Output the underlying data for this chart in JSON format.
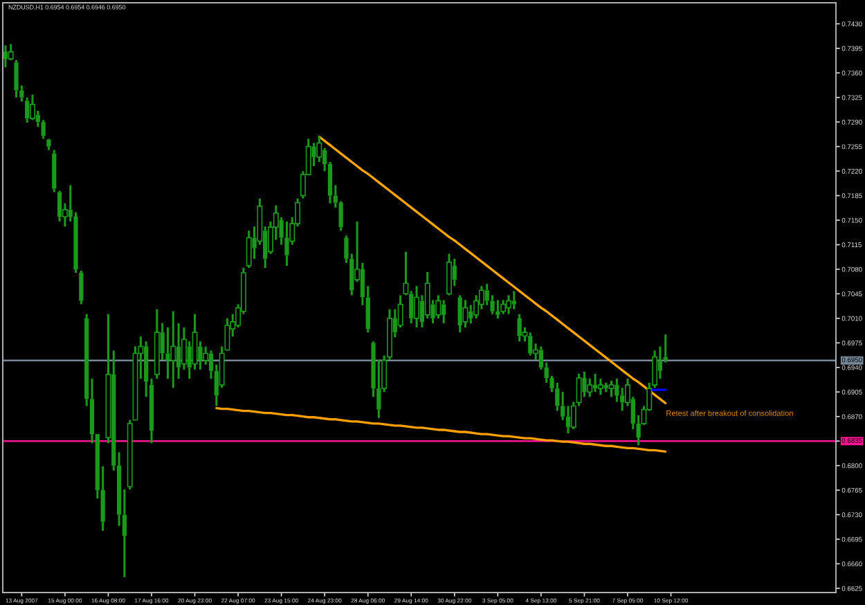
{
  "chart_data": {
    "type": "candlestick",
    "title": "NZDUSD,H1 0.6954 0.6954 0.6946 0.6950",
    "color": "#1a9a1a",
    "categories": [
      null,
      null,
      null,
      "13 Aug 2007",
      null,
      null,
      null,
      null,
      null,
      null,
      null,
      "15 Aug 00:00",
      null,
      null,
      null,
      null,
      null,
      null,
      null,
      "16 Aug 08:00",
      null,
      null,
      null,
      null,
      null,
      null,
      null,
      "17 Aug 16:00",
      null,
      null,
      null,
      null,
      null,
      null,
      null,
      "20 Aug 23:00",
      null,
      null,
      null,
      null,
      null,
      null,
      null,
      "22 Aug 07:00",
      null,
      null,
      null,
      null,
      null,
      null,
      null,
      "23 Aug 15:00",
      null,
      null,
      null,
      null,
      null,
      null,
      null,
      "24 Aug 23:00",
      null,
      null,
      null,
      null,
      null,
      null,
      null,
      "28 Aug 06:00",
      null,
      null,
      null,
      null,
      null,
      null,
      null,
      "29 Aug 14:00",
      null,
      null,
      null,
      null,
      null,
      null,
      null,
      "30 Aug 22:00",
      null,
      null,
      null,
      null,
      null,
      null,
      null,
      "3 Sep 05:00",
      null,
      null,
      null,
      null,
      null,
      null,
      null,
      "4 Sep 13:00",
      null,
      null,
      null,
      null,
      null,
      null,
      null,
      "5 Sep 21:00",
      null,
      null,
      null,
      null,
      null,
      null,
      null,
      "7 Sep 05:00",
      null,
      null,
      null,
      null,
      null,
      null,
      null,
      "10 Sep 12:00",
      null,
      null,
      null,
      null,
      null,
      null,
      null,
      null,
      null,
      null,
      null,
      null,
      null,
      null,
      null,
      null,
      null,
      null,
      null,
      null,
      null,
      null,
      null,
      null,
      null,
      null,
      null,
      null,
      null,
      null
    ],
    "ohlc": [
      [
        0.739,
        0.7399,
        0.7368,
        0.738
      ],
      [
        0.738,
        0.7401,
        0.7378,
        0.739
      ],
      [
        0.7375,
        0.7378,
        0.7325,
        0.7335
      ],
      [
        0.7335,
        0.7342,
        0.7319,
        0.7325
      ],
      [
        0.732,
        0.7325,
        0.7289,
        0.7295
      ],
      [
        0.7295,
        0.7329,
        0.7293,
        0.7315
      ],
      [
        0.73,
        0.7306,
        0.7283,
        0.729
      ],
      [
        0.729,
        0.7293,
        0.7266,
        0.727
      ],
      [
        0.7265,
        0.7266,
        0.725,
        0.7255
      ],
      [
        0.7245,
        0.725,
        0.719,
        0.7195
      ],
      [
        0.719,
        0.7192,
        0.7148,
        0.7155
      ],
      [
        0.7155,
        0.7174,
        0.7141,
        0.7165
      ],
      [
        0.7165,
        0.72,
        0.7148,
        0.7155
      ],
      [
        0.7155,
        0.7161,
        0.7075,
        0.708
      ],
      [
        0.7075,
        0.7078,
        0.703,
        0.7035
      ],
      [
        0.701,
        0.7016,
        0.6885,
        0.6895
      ],
      [
        0.6895,
        0.6924,
        0.6832,
        0.6845
      ],
      [
        0.6845,
        0.6845,
        0.6753,
        0.6765
      ],
      [
        0.6765,
        0.6799,
        0.6707,
        0.672
      ],
      [
        0.684,
        0.7016,
        0.6832,
        0.693
      ],
      [
        0.693,
        0.6964,
        0.6793,
        0.68
      ],
      [
        0.68,
        0.6819,
        0.6714,
        0.673
      ],
      [
        0.673,
        0.6766,
        0.6641,
        0.67
      ],
      [
        0.677,
        0.6865,
        0.6766,
        0.686
      ],
      [
        0.6865,
        0.697,
        0.6865,
        0.696
      ],
      [
        0.696,
        0.6984,
        0.6924,
        0.697
      ],
      [
        0.697,
        0.6977,
        0.6898,
        0.692
      ],
      [
        0.6915,
        0.6924,
        0.6832,
        0.685
      ],
      [
        0.693,
        0.7023,
        0.6924,
        0.699
      ],
      [
        0.699,
        0.7003,
        0.6951,
        0.696
      ],
      [
        0.696,
        0.6997,
        0.6924,
        0.695
      ],
      [
        0.695,
        0.702,
        0.6911,
        0.697
      ],
      [
        0.697,
        0.7003,
        0.6924,
        0.694
      ],
      [
        0.6945,
        0.6997,
        0.6937,
        0.698
      ],
      [
        0.697,
        0.6977,
        0.6924,
        0.694
      ],
      [
        0.6945,
        0.7016,
        0.6937,
        0.699
      ],
      [
        0.697,
        0.6977,
        0.6937,
        0.695
      ],
      [
        0.695,
        0.697,
        0.6944,
        0.696
      ],
      [
        0.696,
        0.6964,
        0.6924,
        0.6935
      ],
      [
        0.6935,
        0.6944,
        0.6885,
        0.69
      ],
      [
        0.6915,
        0.697,
        0.6911,
        0.696
      ],
      [
        0.6965,
        0.701,
        0.6964,
        0.7
      ],
      [
        0.6995,
        0.7016,
        0.6984,
        0.7005
      ],
      [
        0.7,
        0.703,
        0.6997,
        0.7025
      ],
      [
        0.702,
        0.7082,
        0.7016,
        0.7075
      ],
      [
        0.7085,
        0.7135,
        0.7082,
        0.7125
      ],
      [
        0.7125,
        0.7141,
        0.7095,
        0.711
      ],
      [
        0.712,
        0.7181,
        0.7115,
        0.717
      ],
      [
        0.7135,
        0.7141,
        0.7082,
        0.7095
      ],
      [
        0.7105,
        0.7148,
        0.7102,
        0.714
      ],
      [
        0.714,
        0.7171,
        0.7122,
        0.716
      ],
      [
        0.715,
        0.7154,
        0.7115,
        0.7125
      ],
      [
        0.7125,
        0.7148,
        0.7085,
        0.71
      ],
      [
        0.712,
        0.7154,
        0.7115,
        0.7145
      ],
      [
        0.7145,
        0.7181,
        0.7141,
        0.7175
      ],
      [
        0.7185,
        0.722,
        0.7181,
        0.7215
      ],
      [
        0.7215,
        0.7266,
        0.7214,
        0.7255
      ],
      [
        0.7255,
        0.726,
        0.7227,
        0.724
      ],
      [
        0.724,
        0.727,
        0.7233,
        0.726
      ],
      [
        0.725,
        0.7253,
        0.722,
        0.723
      ],
      [
        0.723,
        0.7233,
        0.7174,
        0.7185
      ],
      [
        0.7185,
        0.72,
        0.7168,
        0.7175
      ],
      [
        0.7175,
        0.7177,
        0.7135,
        0.714
      ],
      [
        0.7125,
        0.7128,
        0.7089,
        0.7095
      ],
      [
        0.7095,
        0.7102,
        0.7043,
        0.705
      ],
      [
        0.7065,
        0.7148,
        0.7062,
        0.708
      ],
      [
        0.708,
        0.7089,
        0.7029,
        0.704
      ],
      [
        0.704,
        0.7056,
        0.699,
        0.6995
      ],
      [
        0.6975,
        0.6977,
        0.6898,
        0.691
      ],
      [
        0.691,
        0.6951,
        0.6868,
        0.688
      ],
      [
        0.691,
        0.6957,
        0.6905,
        0.695
      ],
      [
        0.6955,
        0.7023,
        0.6951,
        0.701
      ],
      [
        0.701,
        0.7023,
        0.6983,
        0.699
      ],
      [
        0.7,
        0.7043,
        0.6997,
        0.703
      ],
      [
        0.7045,
        0.7105,
        0.7043,
        0.706
      ],
      [
        0.7045,
        0.7049,
        0.7003,
        0.701
      ],
      [
        0.701,
        0.7056,
        0.6997,
        0.704
      ],
      [
        0.7035,
        0.7043,
        0.6997,
        0.7005
      ],
      [
        0.7015,
        0.7076,
        0.701,
        0.706
      ],
      [
        0.703,
        0.7036,
        0.7003,
        0.701
      ],
      [
        0.7015,
        0.7043,
        0.701,
        0.7035
      ],
      [
        0.703,
        0.7036,
        0.7003,
        0.7015
      ],
      [
        0.7045,
        0.7102,
        0.7043,
        0.709
      ],
      [
        0.7085,
        0.7095,
        0.7056,
        0.7065
      ],
      [
        0.704,
        0.7043,
        0.699,
        0.7
      ],
      [
        0.7005,
        0.7036,
        0.6997,
        0.7025
      ],
      [
        0.702,
        0.7029,
        0.7003,
        0.701
      ],
      [
        0.7015,
        0.7043,
        0.701,
        0.7035
      ],
      [
        0.703,
        0.7056,
        0.7023,
        0.705
      ],
      [
        0.705,
        0.7059,
        0.7029,
        0.7035
      ],
      [
        0.7035,
        0.7043,
        0.7016,
        0.702
      ],
      [
        0.702,
        0.7036,
        0.701,
        0.7015
      ],
      [
        0.702,
        0.7036,
        0.7016,
        0.703
      ],
      [
        0.7025,
        0.7043,
        0.7016,
        0.7035
      ],
      [
        0.7035,
        0.7049,
        0.7023,
        0.703
      ],
      [
        0.701,
        0.7016,
        0.6977,
        0.6985
      ],
      [
        0.6985,
        0.6997,
        0.6977,
        0.699
      ],
      [
        0.6985,
        0.699,
        0.6957,
        0.696
      ],
      [
        0.696,
        0.6974,
        0.6951,
        0.6965
      ],
      [
        0.6965,
        0.697,
        0.6937,
        0.694
      ],
      [
        0.694,
        0.6947,
        0.6918,
        0.6925
      ],
      [
        0.6925,
        0.6928,
        0.6905,
        0.691
      ],
      [
        0.691,
        0.6918,
        0.6878,
        0.6885
      ],
      [
        0.6885,
        0.6905,
        0.6865,
        0.687
      ],
      [
        0.687,
        0.6885,
        0.6846,
        0.6855
      ],
      [
        0.6855,
        0.6891,
        0.6852,
        0.6885
      ],
      [
        0.689,
        0.6931,
        0.6885,
        0.6925
      ],
      [
        0.6925,
        0.6934,
        0.6898,
        0.6905
      ],
      [
        0.6905,
        0.6924,
        0.6898,
        0.6915
      ],
      [
        0.6915,
        0.6931,
        0.6905,
        0.691
      ],
      [
        0.691,
        0.6924,
        0.6901,
        0.6915
      ],
      [
        0.6915,
        0.6918,
        0.6905,
        0.691
      ],
      [
        0.691,
        0.6921,
        0.6898,
        0.6915
      ],
      [
        0.6915,
        0.6924,
        0.6891,
        0.69
      ],
      [
        0.69,
        0.6911,
        0.6878,
        0.689
      ],
      [
        0.689,
        0.6924,
        0.6885,
        0.6915
      ],
      [
        0.6895,
        0.6898,
        0.6852,
        0.686
      ],
      [
        0.686,
        0.6872,
        0.6829,
        0.684
      ],
      [
        0.686,
        0.6885,
        0.6858,
        0.688
      ],
      [
        0.688,
        0.6918,
        0.6878,
        0.691
      ],
      [
        0.6915,
        0.6964,
        0.6911,
        0.6955
      ],
      [
        0.695,
        0.697,
        0.6924,
        0.6935
      ],
      [
        0.6955,
        0.6987,
        0.6947,
        0.695
      ],
      null,
      null,
      null,
      null,
      null,
      null,
      null,
      null,
      null,
      null,
      null,
      null,
      null,
      null,
      null,
      null,
      null,
      null,
      null,
      null,
      null,
      null,
      null,
      null,
      null,
      null,
      null,
      null,
      null,
      null,
      null
    ],
    "ylim": [
      0.6619,
      0.746
    ],
    "yticks": [
      0.6625,
      {
        "value": 0.666,
        "label": "0.6660"
      },
      0.6695,
      {
        "value": 0.673,
        "label": "0.6730"
      },
      0.6765,
      {
        "value": 0.68,
        "label": "0.6800"
      },
      {
        "value": 0.6835,
        "label": null
      },
      {
        "value": 0.687,
        "label": "0.6870"
      },
      0.6905,
      {
        "value": 0.694,
        "label": "0.6940"
      },
      0.6975,
      {
        "value": 0.701,
        "label": "0.7010"
      },
      0.7045,
      {
        "value": 0.708,
        "label": "0.7080"
      },
      0.7115,
      {
        "value": 0.715,
        "label": "0.7150"
      },
      0.7185,
      {
        "value": 0.722,
        "label": "0.7220"
      },
      0.7255,
      {
        "value": 0.729,
        "label": "0.7290"
      },
      0.7325,
      {
        "value": 0.736,
        "label": "0.7360"
      },
      0.7395,
      {
        "value": 0.743,
        "label": "0.7430"
      }
    ],
    "series": [
      {
        "type": "line",
        "color": "#ffa500",
        "values": [
          null,
          null,
          null,
          null,
          null,
          null,
          null,
          null,
          null,
          null,
          null,
          null,
          null,
          null,
          null,
          null,
          null,
          null,
          null,
          null,
          null,
          null,
          null,
          null,
          null,
          null,
          null,
          null,
          null,
          null,
          null,
          null,
          null,
          null,
          null,
          null,
          null,
          null,
          null,
          null,
          null,
          null,
          null,
          null,
          null,
          null,
          null,
          null,
          null,
          null,
          null,
          null,
          null,
          null,
          null,
          null,
          null,
          null,
          0.7269,
          0.7263,
          0.7257,
          0.7251,
          0.7245,
          0.7239,
          0.7233,
          0.7227,
          0.7221,
          0.7216,
          0.721,
          0.7204,
          0.7198,
          0.7192,
          0.7186,
          0.718,
          0.7174,
          0.7168,
          0.7162,
          0.7156,
          0.715,
          0.7144,
          0.7138,
          0.7132,
          0.7126,
          0.7121,
          0.7115,
          0.7109,
          0.7103,
          0.7097,
          0.7091,
          0.7085,
          0.7079,
          0.7073,
          0.7067,
          0.7061,
          0.7055,
          0.7049,
          0.7043,
          0.7037,
          0.7031,
          0.7025,
          0.702,
          0.7014,
          0.7008,
          0.7002,
          0.6996,
          0.699,
          0.6984,
          0.6978,
          0.6972,
          0.6966,
          0.696,
          0.6954,
          0.6948,
          0.6942,
          0.6936,
          0.693,
          0.6924,
          0.6919,
          0.6913,
          0.6907,
          0.6901,
          0.6895,
          0.6889,
          null,
          null,
          null,
          null,
          null,
          null,
          null,
          null,
          null,
          null,
          null,
          null,
          null,
          null,
          null,
          null,
          null,
          null,
          null,
          null,
          null,
          null,
          null,
          null,
          null,
          null,
          null,
          null,
          null,
          null,
          null
        ]
      },
      {
        "type": "line",
        "color": "#ff9f00",
        "values": [
          null,
          null,
          null,
          null,
          null,
          null,
          null,
          null,
          null,
          null,
          null,
          null,
          null,
          null,
          null,
          null,
          null,
          null,
          null,
          null,
          null,
          null,
          null,
          null,
          null,
          null,
          null,
          null,
          null,
          null,
          null,
          null,
          null,
          null,
          null,
          null,
          null,
          null,
          null,
          0.6882,
          0.6881,
          0.6881,
          0.688,
          0.6879,
          0.6878,
          0.6878,
          0.6877,
          0.6876,
          0.6875,
          0.6875,
          0.6874,
          0.6873,
          0.6872,
          0.6872,
          0.6871,
          0.687,
          0.6869,
          0.6869,
          0.6868,
          0.6867,
          0.6866,
          0.6866,
          0.6865,
          0.6864,
          0.6863,
          0.6863,
          0.6862,
          0.6861,
          0.686,
          0.686,
          0.6859,
          0.6858,
          0.6857,
          0.6857,
          0.6856,
          0.6855,
          0.6854,
          0.6854,
          0.6853,
          0.6852,
          0.6851,
          0.6851,
          0.685,
          0.6849,
          0.6848,
          0.6848,
          0.6847,
          0.6846,
          0.6845,
          0.6845,
          0.6844,
          0.6843,
          0.6842,
          0.6842,
          0.6841,
          0.684,
          0.6839,
          0.6839,
          0.6838,
          0.6837,
          0.6836,
          0.6836,
          0.6835,
          0.6834,
          0.6834,
          0.6833,
          0.6832,
          0.6831,
          0.6831,
          0.683,
          0.6829,
          0.6828,
          0.6828,
          0.6827,
          0.6826,
          0.6825,
          0.6825,
          0.6824,
          0.6823,
          0.6822,
          0.6822,
          0.6821,
          0.682,
          null,
          null,
          null,
          null,
          null,
          null,
          null,
          null,
          null,
          null,
          null,
          null,
          null,
          null,
          null,
          null,
          null,
          null,
          null,
          null,
          null,
          null,
          null,
          null,
          null,
          null,
          null,
          null,
          null,
          null,
          null
        ]
      },
      {
        "type": "line",
        "color": "#0000ff",
        "values": [
          null,
          null,
          null,
          null,
          null,
          null,
          null,
          null,
          null,
          null,
          null,
          null,
          null,
          null,
          null,
          null,
          null,
          null,
          null,
          null,
          null,
          null,
          null,
          null,
          null,
          null,
          null,
          null,
          null,
          null,
          null,
          null,
          null,
          null,
          null,
          null,
          null,
          null,
          null,
          null,
          null,
          null,
          null,
          null,
          null,
          null,
          null,
          null,
          null,
          null,
          null,
          null,
          null,
          null,
          null,
          null,
          null,
          null,
          null,
          null,
          null,
          null,
          null,
          null,
          null,
          null,
          null,
          null,
          null,
          null,
          null,
          null,
          null,
          null,
          null,
          null,
          null,
          null,
          null,
          null,
          null,
          null,
          null,
          null,
          null,
          null,
          null,
          null,
          null,
          null,
          null,
          null,
          null,
          null,
          null,
          null,
          null,
          null,
          null,
          null,
          null,
          null,
          null,
          null,
          null,
          null,
          null,
          null,
          null,
          null,
          null,
          null,
          null,
          null,
          null,
          null,
          null,
          null,
          null,
          0.6908,
          0.6908,
          0.6908,
          0.6908,
          null,
          null,
          null,
          null,
          null,
          null,
          null,
          null,
          null,
          null,
          null,
          null,
          null,
          null,
          null,
          null,
          null,
          null,
          null,
          null,
          null,
          null,
          null,
          null,
          null,
          null,
          null,
          null,
          null,
          null,
          null
        ]
      }
    ],
    "ref_lines": [
      {
        "axis": "y",
        "value": 0.695,
        "label": "0.6950",
        "color": "#778899"
      },
      {
        "axis": "y",
        "value": 0.6835,
        "label": "0.6835",
        "color": "#ff1493"
      }
    ],
    "annotations": [
      "Retest after breakout of consolidation"
    ]
  }
}
